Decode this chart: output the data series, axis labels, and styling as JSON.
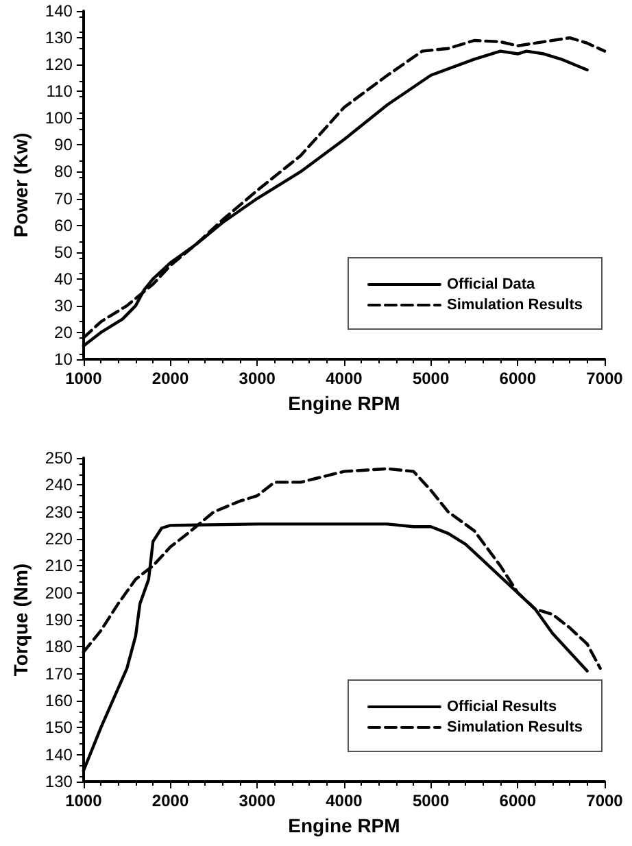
{
  "chart_data": [
    {
      "type": "line",
      "xlabel": "Engine RPM",
      "ylabel": "Power (Kw)",
      "xlim": [
        1000,
        7000
      ],
      "xticks": [
        1000,
        2000,
        3000,
        4000,
        5000,
        6000,
        7000
      ],
      "ylim": [
        10,
        140
      ],
      "yticks": [
        10,
        20,
        30,
        40,
        50,
        60,
        70,
        80,
        90,
        100,
        110,
        120,
        130,
        140
      ],
      "grid": false,
      "legend": "bottom right",
      "marker": "none",
      "series": [
        {
          "name": "Official Data",
          "color": "#000000",
          "line_style": "solid",
          "x": [
            1000,
            1200,
            1450,
            1600,
            1700,
            1800,
            2000,
            2300,
            2600,
            3000,
            3500,
            4000,
            4500,
            5000,
            5500,
            5800,
            6000,
            6100,
            6300,
            6500,
            6800
          ],
          "values": [
            15,
            20,
            25,
            30,
            36,
            40,
            46,
            53,
            61,
            70,
            80,
            92,
            105,
            116,
            122,
            125,
            124,
            125,
            124,
            122,
            118
          ]
        },
        {
          "name": "Simulation Results",
          "color": "#000000",
          "line_style": "dashed",
          "x": [
            1000,
            1200,
            1500,
            1800,
            2000,
            2300,
            2600,
            3000,
            3500,
            4000,
            4500,
            4900,
            5200,
            5500,
            5800,
            6000,
            6200,
            6600,
            6800,
            7000
          ],
          "values": [
            18,
            24,
            30,
            38,
            45,
            53,
            62,
            73,
            86,
            104,
            116,
            125,
            126,
            129,
            128.5,
            127,
            128,
            130,
            128,
            125
          ]
        }
      ]
    },
    {
      "type": "line",
      "xlabel": "Engine RPM",
      "ylabel": "Torque (Nm)",
      "xlim": [
        1000,
        7000
      ],
      "xticks": [
        1000,
        2000,
        3000,
        4000,
        5000,
        6000,
        7000
      ],
      "ylim": [
        130,
        250
      ],
      "yticks": [
        130,
        140,
        150,
        160,
        170,
        180,
        190,
        200,
        210,
        220,
        230,
        240,
        250
      ],
      "grid": false,
      "legend": "bottom right",
      "marker": "none",
      "series": [
        {
          "name": "Official Results",
          "color": "#000000",
          "line_style": "solid",
          "x": [
            1000,
            1200,
            1500,
            1600,
            1650,
            1750,
            1800,
            1900,
            2000,
            3000,
            4500,
            4800,
            5000,
            5200,
            5400,
            5600,
            5800,
            6000,
            6200,
            6400,
            6600,
            6800
          ],
          "values": [
            134,
            150,
            172,
            184,
            196,
            205,
            219,
            224,
            225,
            225.5,
            225.5,
            224.5,
            224.5,
            222,
            218,
            212,
            206,
            200,
            194,
            185,
            178,
            171
          ]
        },
        {
          "name": "Simulation Results",
          "color": "#000000",
          "line_style": "dashed",
          "x": [
            1000,
            1200,
            1400,
            1600,
            1800,
            2000,
            2200,
            2500,
            2800,
            3000,
            3200,
            3500,
            4000,
            4500,
            4800,
            5000,
            5200,
            5500,
            5800,
            6000,
            6200,
            6400,
            6600,
            6800,
            6950
          ],
          "values": [
            178,
            186,
            196,
            205,
            210,
            217,
            222,
            230,
            234,
            236,
            241,
            241,
            245,
            246,
            245,
            238,
            230,
            223,
            210,
            200,
            194,
            192,
            187,
            181,
            172
          ]
        }
      ]
    }
  ]
}
